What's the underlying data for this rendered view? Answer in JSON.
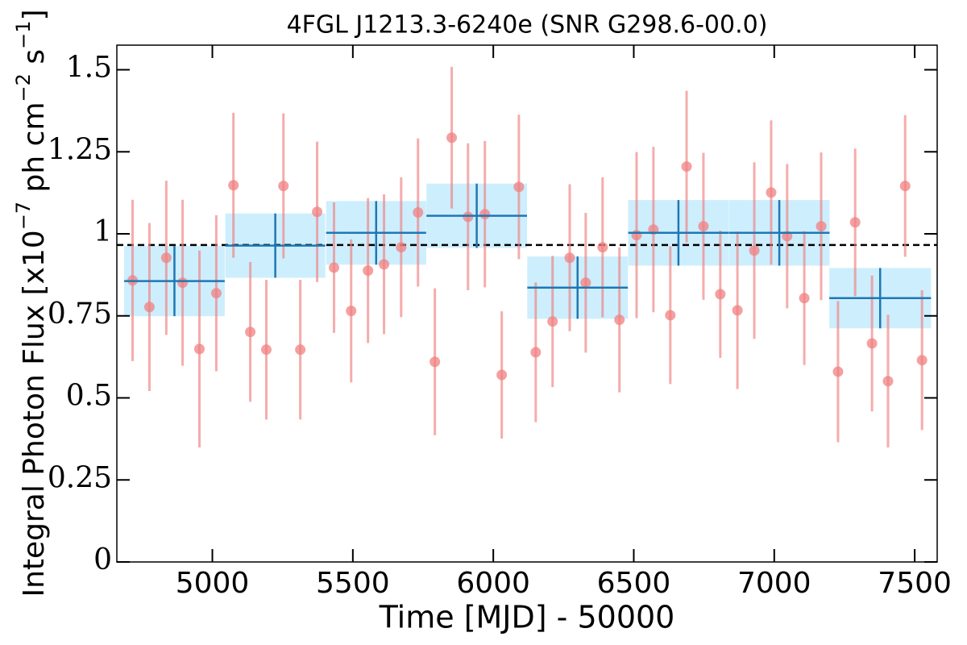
{
  "chart_data": {
    "type": "scatter",
    "title": "4FGL J1213.3-6240e (SNR G298.6-00.0)",
    "xlabel": "Time [MJD] - 50000",
    "ylabel": [
      "Integral Photon Flux [x10",
      "−7",
      " ph cm",
      "−2",
      " s",
      "−1",
      "]"
    ],
    "xlim": [
      4660,
      7580
    ],
    "ylim": [
      0,
      1.575
    ],
    "xticks": [
      5000,
      5500,
      6000,
      6500,
      7000,
      7500
    ],
    "yticks": [
      0,
      0.25,
      0.5,
      0.75,
      1,
      1.25,
      1.5
    ],
    "mean_flux": 0.966,
    "mean_color": "#000000",
    "series": [
      {
        "color": "#f08080",
        "x": [
          4716,
          4776,
          4836,
          4894,
          4954,
          5014,
          5075,
          5135,
          5192,
          5253,
          5313,
          5373,
          5433,
          5494,
          5554,
          5611,
          5672,
          5732,
          5792,
          5852,
          5910,
          5970,
          6030,
          6091,
          6151,
          6211,
          6272,
          6329,
          6389,
          6449,
          6510,
          6570,
          6630,
          6688,
          6748,
          6808,
          6869,
          6929,
          6989,
          7046,
          7107,
          7167,
          7227,
          7288,
          7348,
          7405,
          7466,
          7526
        ],
        "values": [
          0.858,
          0.777,
          0.927,
          0.851,
          0.649,
          0.819,
          1.148,
          0.701,
          0.647,
          1.146,
          0.647,
          1.067,
          0.897,
          0.765,
          0.888,
          0.907,
          0.959,
          1.065,
          0.61,
          1.293,
          1.052,
          1.06,
          0.57,
          1.143,
          0.639,
          0.733,
          0.927,
          0.851,
          0.959,
          0.738,
          0.996,
          1.013,
          0.752,
          1.205,
          1.023,
          0.816,
          0.767,
          0.949,
          1.126,
          0.993,
          0.804,
          1.023,
          0.58,
          1.035,
          0.666,
          0.551,
          1.146,
          0.615
        ],
        "errors": [
          0.246,
          0.256,
          0.235,
          0.253,
          0.3,
          0.238,
          0.221,
          0.213,
          0.213,
          0.221,
          0.213,
          0.214,
          0.199,
          0.218,
          0.221,
          0.213,
          0.213,
          0.226,
          0.224,
          0.216,
          0.224,
          0.223,
          0.194,
          0.22,
          0.213,
          0.2,
          0.224,
          0.213,
          0.213,
          0.221,
          0.253,
          0.252,
          0.21,
          0.231,
          0.224,
          0.194,
          0.24,
          0.269,
          0.22,
          0.22,
          0.204,
          0.225,
          0.215,
          0.225,
          0.207,
          0.202,
          0.216,
          0.213
        ]
      },
      {
        "color": "#1f77b4",
        "fill": "#cdeefd",
        "x": [
          4865,
          5224,
          5583,
          5941,
          6300,
          6659,
          7018,
          7377
        ],
        "xerr": [
          179,
          178,
          178,
          179,
          179,
          179,
          179,
          181
        ],
        "values": [
          0.856,
          0.964,
          1.003,
          1.055,
          0.836,
          1.003,
          1.003,
          0.804
        ],
        "errors": [
          0.107,
          0.098,
          0.097,
          0.098,
          0.095,
          0.1,
          0.1,
          0.092
        ]
      }
    ]
  }
}
